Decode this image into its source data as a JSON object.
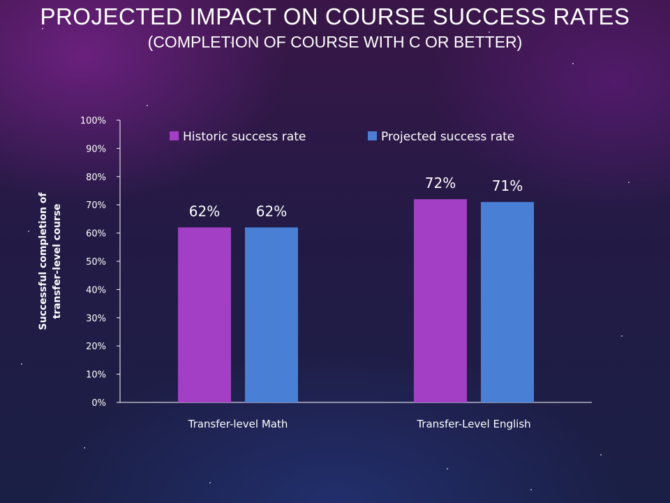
{
  "header": {
    "title": "PROJECTED IMPACT ON COURSE SUCCESS RATES",
    "subtitle": "(COMPLETION OF COURSE WITH C OR BETTER)"
  },
  "colors": {
    "historic": "#a23fc4",
    "projected": "#4a7fd6",
    "text": "#ffffff",
    "axis": "#ffffff"
  },
  "chart_data": {
    "type": "bar",
    "categories": [
      "Transfer-level Math",
      "Transfer-Level English"
    ],
    "series": [
      {
        "name": "Historic success rate",
        "values": [
          62,
          72
        ],
        "labels": [
          "62%",
          "72%"
        ]
      },
      {
        "name": "Projected success rate",
        "values": [
          62,
          71
        ],
        "labels": [
          "62%",
          "71%"
        ]
      }
    ],
    "ylabel": "Successful completion of transfer-level course",
    "ylim": [
      0,
      100
    ],
    "yticks": [
      "0%",
      "10%",
      "20%",
      "30%",
      "40%",
      "50%",
      "60%",
      "70%",
      "80%",
      "90%",
      "100%"
    ],
    "legend": "top",
    "grid": false
  }
}
